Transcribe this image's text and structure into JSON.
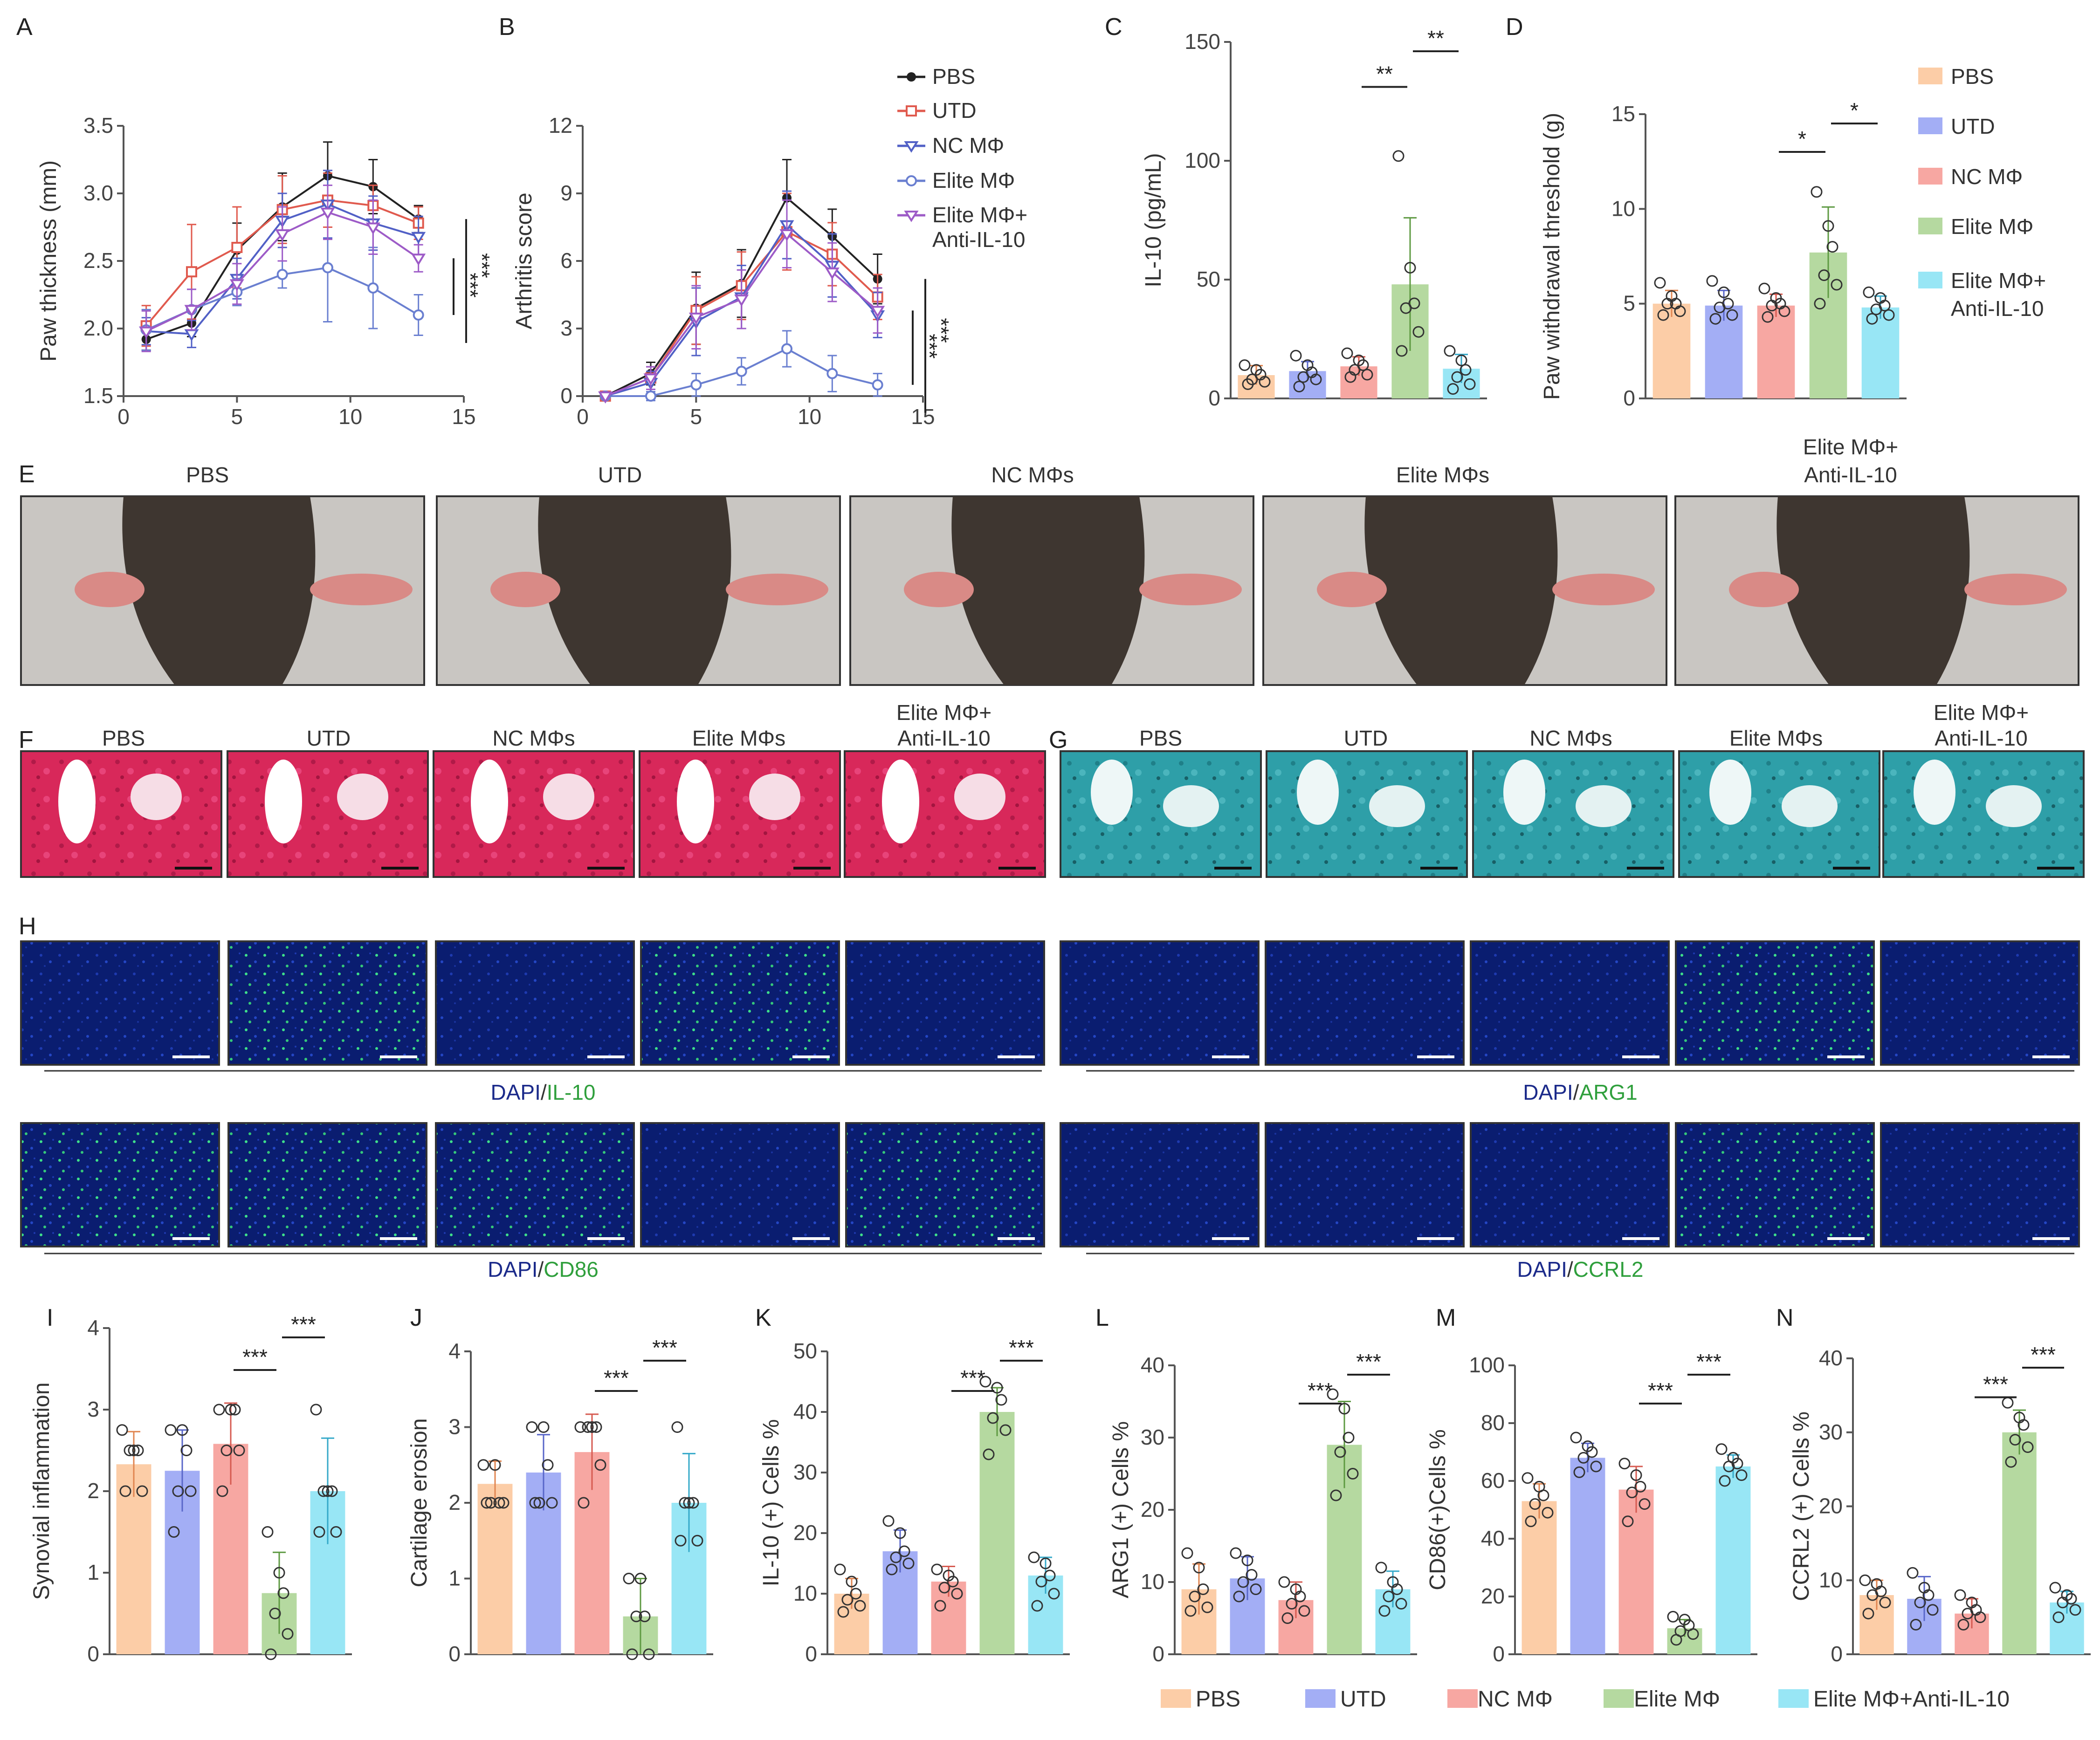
{
  "colors": {
    "PBS": "#fccda7",
    "UTD": "#a3aef5",
    "NC": "#f7a7a2",
    "Elite": "#b5d9a0",
    "EliteAnti": "#98e6f5",
    "PBS_dark": "#e08550",
    "UTD_dark": "#5866c9",
    "NC_dark": "#d65a50",
    "Elite_dark": "#5e9a42",
    "EliteAnti_dark": "#35a9c9",
    "line_PBS": "#222222",
    "line_UTD": "#e05a4e",
    "line_NC": "#5160c6",
    "line_Elite": "#6a7fd0",
    "line_EliteAnti": "#9d5bc7",
    "he_stain": "#d8285a",
    "safranin": "#2e9fa8",
    "if_bg": "#0a1d70",
    "if_green": "#3ee08a"
  },
  "panel_letters": [
    "A",
    "B",
    "C",
    "D",
    "E",
    "F",
    "G",
    "H",
    "I",
    "J",
    "K",
    "L",
    "M",
    "N"
  ],
  "groups_photo": [
    "PBS",
    "UTD",
    "NC MΦs",
    "Elite MΦs",
    "Elite MΦ+",
    "Anti-IL-10"
  ],
  "legend_line": [
    "PBS",
    "UTD",
    "NC MΦ",
    "Elite MΦ",
    "Elite MΦ+",
    "Anti-IL-10"
  ],
  "legend_bar_D": [
    "PBS",
    "UTD",
    "NC MΦ",
    "Elite MΦ",
    "Elite MΦ+",
    "Anti-IL-10"
  ],
  "legend_bottom": [
    "PBS",
    "UTD",
    "NC MΦ",
    "Elite MΦ",
    "Elite MΦ+Anti-IL-10"
  ],
  "if_labels": {
    "il10": [
      "DAPI",
      "/",
      "IL-10"
    ],
    "arg1": [
      "DAPI",
      "/",
      "ARG1"
    ],
    "cd86": [
      "DAPI",
      "/",
      "CD86"
    ],
    "ccrl2": [
      "DAPI",
      "/",
      "CCRL2"
    ]
  },
  "chart_data": [
    {
      "panel": "A",
      "type": "line",
      "ylabel": "Paw thickness (mm)",
      "xlabel": "",
      "x": [
        1,
        3,
        5,
        7,
        9,
        11,
        13
      ],
      "xlim": [
        0,
        15
      ],
      "ylim": [
        1.5,
        3.5
      ],
      "xticks": [
        0,
        5,
        10,
        15
      ],
      "yticks": [
        1.5,
        2.0,
        2.5,
        3.0,
        3.5
      ],
      "series": [
        {
          "name": "PBS",
          "values": [
            1.92,
            2.04,
            2.58,
            2.9,
            3.13,
            3.05,
            2.81
          ],
          "err": [
            0.08,
            0.1,
            0.2,
            0.25,
            0.25,
            0.2,
            0.1
          ]
        },
        {
          "name": "UTD",
          "values": [
            2.02,
            2.42,
            2.6,
            2.88,
            2.95,
            2.91,
            2.78
          ],
          "err": [
            0.15,
            0.35,
            0.3,
            0.25,
            0.2,
            0.15,
            0.12
          ]
        },
        {
          "name": "NC MΦ",
          "values": [
            1.98,
            1.96,
            2.37,
            2.8,
            2.92,
            2.78,
            2.68
          ],
          "err": [
            0.1,
            0.1,
            0.15,
            0.2,
            0.25,
            0.2,
            0.15
          ]
        },
        {
          "name": "Elite MΦ",
          "values": [
            1.99,
            2.14,
            2.27,
            2.4,
            2.45,
            2.3,
            2.1
          ],
          "err": [
            0.15,
            0.15,
            0.1,
            0.1,
            0.4,
            0.3,
            0.15
          ]
        },
        {
          "name": "Elite MΦ+Anti-IL-10",
          "values": [
            1.98,
            2.14,
            2.33,
            2.7,
            2.86,
            2.75,
            2.52
          ],
          "err": [
            0.15,
            0.15,
            0.15,
            0.2,
            0.2,
            0.2,
            0.1
          ]
        }
      ],
      "sig": [
        "***",
        "***"
      ]
    },
    {
      "panel": "B",
      "type": "line",
      "ylabel": "Arthritis score",
      "xlabel": "",
      "x": [
        1,
        3,
        5,
        7,
        9,
        11,
        13
      ],
      "xlim": [
        0,
        15
      ],
      "ylim": [
        0,
        12
      ],
      "xticks": [
        0,
        5,
        10,
        15
      ],
      "yticks": [
        0,
        3,
        6,
        9,
        12
      ],
      "series": [
        {
          "name": "PBS",
          "values": [
            0,
            1.0,
            3.9,
            5.0,
            8.8,
            7.1,
            5.2
          ],
          "err": [
            0,
            0.5,
            1.6,
            1.5,
            1.7,
            1.2,
            1.1
          ]
        },
        {
          "name": "UTD",
          "values": [
            0,
            0.8,
            3.8,
            4.9,
            7.3,
            6.3,
            4.4
          ],
          "err": [
            0,
            0.5,
            1.5,
            1.5,
            1.7,
            1.4,
            1.0
          ]
        },
        {
          "name": "NC MΦ",
          "values": [
            0,
            0.6,
            3.3,
            4.4,
            7.6,
            5.8,
            3.6
          ],
          "err": [
            0,
            0.5,
            1.5,
            1.4,
            1.5,
            1.4,
            1.0
          ]
        },
        {
          "name": "Elite MΦ",
          "values": [
            0,
            0.0,
            0.5,
            1.1,
            2.1,
            1.0,
            0.5
          ],
          "err": [
            0,
            0.2,
            0.5,
            0.6,
            0.8,
            0.8,
            0.5
          ]
        },
        {
          "name": "Elite MΦ+Anti-IL-10",
          "values": [
            0,
            0.8,
            3.5,
            4.3,
            7.2,
            5.5,
            3.8
          ],
          "err": [
            0,
            0.5,
            1.4,
            1.3,
            1.5,
            1.3,
            1.0
          ]
        }
      ],
      "sig": [
        "***",
        "***"
      ]
    },
    {
      "panel": "C",
      "type": "bar",
      "ylabel": "IL-10 (pg/mL)",
      "categories": [
        "PBS",
        "UTD",
        "NC MΦ",
        "Elite MΦ",
        "Elite MΦ+Anti-IL-10"
      ],
      "values": [
        9.8,
        11.5,
        13.5,
        48,
        12.5
      ],
      "err": [
        4,
        4,
        4,
        28,
        6
      ],
      "points": [
        [
          6,
          7,
          8,
          10,
          12,
          14
        ],
        [
          5,
          8,
          9,
          11,
          14,
          18
        ],
        [
          9,
          10,
          12,
          14,
          16,
          19
        ],
        [
          20,
          28,
          38,
          40,
          55,
          102
        ],
        [
          4,
          6,
          9,
          12,
          16,
          20
        ]
      ],
      "ylim": [
        0,
        150
      ],
      "yticks": [
        0,
        50,
        100,
        150
      ],
      "sig": [
        {
          "from": 2,
          "to": 3,
          "label": "**"
        },
        {
          "from": 3,
          "to": 4,
          "label": "**"
        }
      ]
    },
    {
      "panel": "D",
      "type": "bar",
      "ylabel": "Paw withdrawal threshold (g)",
      "categories": [
        "PBS",
        "UTD",
        "NC MΦ",
        "Elite MΦ",
        "Elite MΦ+Anti-IL-10"
      ],
      "values": [
        5.0,
        4.9,
        4.9,
        7.7,
        4.8
      ],
      "err": [
        0.7,
        0.8,
        0.6,
        2.4,
        0.6
      ],
      "points": [
        [
          4.4,
          4.6,
          5.0,
          5.0,
          5.4,
          6.1
        ],
        [
          4.2,
          4.4,
          4.8,
          5.0,
          5.6,
          6.2
        ],
        [
          4.3,
          4.6,
          4.9,
          5.0,
          5.3,
          5.8
        ],
        [
          5.0,
          6.0,
          6.5,
          8.0,
          9.1,
          10.9
        ],
        [
          4.2,
          4.4,
          4.7,
          4.9,
          5.3,
          5.6
        ]
      ],
      "ylim": [
        0,
        15
      ],
      "yticks": [
        0,
        5,
        10,
        15
      ],
      "sig": [
        {
          "from": 2,
          "to": 3,
          "label": "*"
        },
        {
          "from": 3,
          "to": 4,
          "label": "*"
        }
      ]
    },
    {
      "panel": "I",
      "type": "bar",
      "ylabel": "Synovial inflammation",
      "categories": [
        "PBS",
        "UTD",
        "NC MΦ",
        "Elite MΦ",
        "Elite MΦ+Anti-IL-10"
      ],
      "values": [
        2.33,
        2.25,
        2.58,
        0.75,
        2.0
      ],
      "err": [
        0.4,
        0.5,
        0.5,
        0.5,
        0.65
      ],
      "points": [
        [
          2,
          2,
          2.5,
          2.5,
          2.5,
          2.75
        ],
        [
          1.5,
          2,
          2,
          2.5,
          2.75,
          2.75
        ],
        [
          2,
          2.5,
          2.5,
          3,
          3,
          3
        ],
        [
          0,
          0.25,
          0.5,
          0.75,
          1,
          1.5
        ],
        [
          1.5,
          1.5,
          2,
          2,
          2,
          3
        ]
      ],
      "ylim": [
        0,
        4
      ],
      "yticks": [
        0,
        1,
        2,
        3,
        4
      ],
      "sig": [
        {
          "from": 2,
          "to": 3,
          "label": "***"
        },
        {
          "from": 3,
          "to": 4,
          "label": "***"
        }
      ]
    },
    {
      "panel": "J",
      "type": "bar",
      "ylabel": "Cartilage erosion",
      "categories": [
        "PBS",
        "UTD",
        "NC MΦ",
        "Elite MΦ",
        "Elite MΦ+Anti-IL-10"
      ],
      "values": [
        2.25,
        2.4,
        2.67,
        0.5,
        2.0
      ],
      "err": [
        0.3,
        0.5,
        0.5,
        0.5,
        0.65
      ],
      "points": [
        [
          2,
          2,
          2,
          2,
          2.5,
          2.5
        ],
        [
          2,
          2,
          2,
          2.5,
          3,
          3
        ],
        [
          2,
          2.5,
          3,
          3,
          3,
          3
        ],
        [
          0,
          0,
          0.5,
          0.5,
          1,
          1
        ],
        [
          1.5,
          1.5,
          2,
          2,
          2,
          3
        ]
      ],
      "ylim": [
        0,
        4
      ],
      "yticks": [
        0,
        1,
        2,
        3,
        4
      ],
      "sig": [
        {
          "from": 2,
          "to": 3,
          "label": "***"
        },
        {
          "from": 3,
          "to": 4,
          "label": "***"
        }
      ]
    },
    {
      "panel": "K",
      "type": "bar",
      "ylabel": "IL-10 (+) Cells %",
      "categories": [
        "PBS",
        "UTD",
        "NC MΦ",
        "Elite MΦ",
        "Elite MΦ+Anti-IL-10"
      ],
      "values": [
        10,
        17,
        12,
        40,
        13
      ],
      "err": [
        2.5,
        3.5,
        2.5,
        4,
        3
      ],
      "points": [
        [
          7,
          8,
          9,
          10,
          12,
          14
        ],
        [
          14,
          15,
          16,
          17,
          20,
          22
        ],
        [
          8,
          10,
          11,
          12,
          13,
          14
        ],
        [
          33,
          37,
          39,
          42,
          44,
          45
        ],
        [
          8,
          10,
          12,
          13,
          15,
          16
        ]
      ],
      "ylim": [
        0,
        50
      ],
      "yticks": [
        0,
        10,
        20,
        30,
        40,
        50
      ],
      "sig": [
        {
          "from": 2,
          "to": 3,
          "label": "***"
        },
        {
          "from": 3,
          "to": 4,
          "label": "***"
        }
      ]
    },
    {
      "panel": "L",
      "type": "bar",
      "ylabel": "ARG1 (+) Cells %",
      "categories": [
        "PBS",
        "UTD",
        "NC MΦ",
        "Elite MΦ",
        "Elite MΦ+Anti-IL-10"
      ],
      "values": [
        9,
        10.5,
        7.5,
        29,
        9
      ],
      "err": [
        3.5,
        3,
        2.5,
        6,
        2.5
      ],
      "points": [
        [
          6,
          6.5,
          8,
          9,
          12,
          14
        ],
        [
          8,
          9,
          10,
          11,
          13,
          14
        ],
        [
          5,
          6,
          7,
          8,
          9,
          10
        ],
        [
          22,
          25,
          28,
          30,
          34,
          36
        ],
        [
          6,
          7,
          8,
          9,
          10,
          12
        ]
      ],
      "ylim": [
        0,
        40
      ],
      "yticks": [
        0,
        10,
        20,
        30,
        40
      ],
      "sig": [
        {
          "from": 2,
          "to": 3,
          "label": "***"
        },
        {
          "from": 3,
          "to": 4,
          "label": "***"
        }
      ]
    },
    {
      "panel": "M",
      "type": "bar",
      "ylabel": "CD86(+)Cells %",
      "categories": [
        "PBS",
        "UTD",
        "NC MΦ",
        "Elite MΦ",
        "Elite MΦ+Anti-IL-10"
      ],
      "values": [
        53,
        68,
        57,
        9,
        65
      ],
      "err": [
        6,
        5,
        8,
        3,
        4
      ],
      "points": [
        [
          46,
          49,
          52,
          55,
          58,
          61
        ],
        [
          63,
          65,
          68,
          70,
          72,
          75
        ],
        [
          46,
          52,
          56,
          58,
          62,
          66
        ],
        [
          5,
          7,
          8,
          10,
          12,
          13
        ],
        [
          60,
          62,
          65,
          66,
          68,
          71
        ]
      ],
      "ylim": [
        0,
        100
      ],
      "yticks": [
        0,
        20,
        40,
        60,
        80,
        100
      ],
      "sig": [
        {
          "from": 2,
          "to": 3,
          "label": "***"
        },
        {
          "from": 3,
          "to": 4,
          "label": "***"
        }
      ]
    },
    {
      "panel": "N",
      "type": "bar",
      "ylabel": "CCRL2 (+) Cells %",
      "categories": [
        "PBS",
        "UTD",
        "NC MΦ",
        "Elite MΦ",
        "Elite MΦ+Anti-IL-10"
      ],
      "values": [
        8,
        7.5,
        5.5,
        30,
        7
      ],
      "err": [
        2,
        3,
        2,
        3,
        1.5
      ],
      "points": [
        [
          5.5,
          7,
          8,
          8.5,
          9.5,
          10
        ],
        [
          4,
          6,
          7,
          8,
          9,
          11
        ],
        [
          4,
          5,
          5.5,
          6,
          7,
          8
        ],
        [
          26,
          28,
          29,
          31,
          32,
          34
        ],
        [
          5,
          6,
          7,
          7.5,
          8,
          9
        ]
      ],
      "ylim": [
        0,
        40
      ],
      "yticks": [
        0,
        10,
        20,
        30,
        40
      ],
      "sig": [
        {
          "from": 2,
          "to": 3,
          "label": "***"
        },
        {
          "from": 3,
          "to": 4,
          "label": "***"
        }
      ]
    }
  ]
}
